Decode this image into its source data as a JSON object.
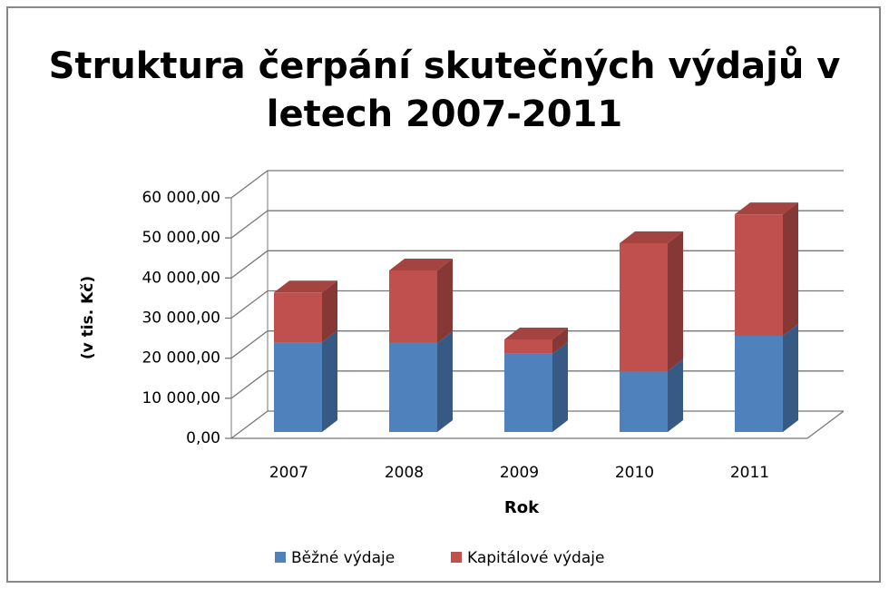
{
  "chart_data": {
    "type": "bar3d_stacked",
    "title": [
      "Struktura čerpání skutečných výdajů v",
      "letech 2007-2011"
    ],
    "x_label": "Rok",
    "y_label": "(v tis. Kč)",
    "categories": [
      "2007",
      "2008",
      "2009",
      "2010",
      "2011"
    ],
    "series": [
      {
        "name": "Běžné výdaje",
        "color": "#4f81bd",
        "values": [
          22400,
          22200,
          19500,
          15200,
          24000
        ]
      },
      {
        "name": "Kapitálové výdaje",
        "color": "#c0504d",
        "values": [
          12400,
          18100,
          3600,
          31900,
          30300
        ]
      }
    ],
    "ylim": [
      0,
      60000
    ],
    "yticks": [
      {
        "value": 0,
        "label": "0,00"
      },
      {
        "value": 10000,
        "label": "10 000,00"
      },
      {
        "value": 20000,
        "label": "20 000,00"
      },
      {
        "value": 30000,
        "label": "30 000,00"
      },
      {
        "value": 40000,
        "label": "40 000,00"
      },
      {
        "value": 50000,
        "label": "50 000,00"
      },
      {
        "value": 60000,
        "label": "60 000,00"
      }
    ],
    "grid": true,
    "legend": "bottom"
  }
}
